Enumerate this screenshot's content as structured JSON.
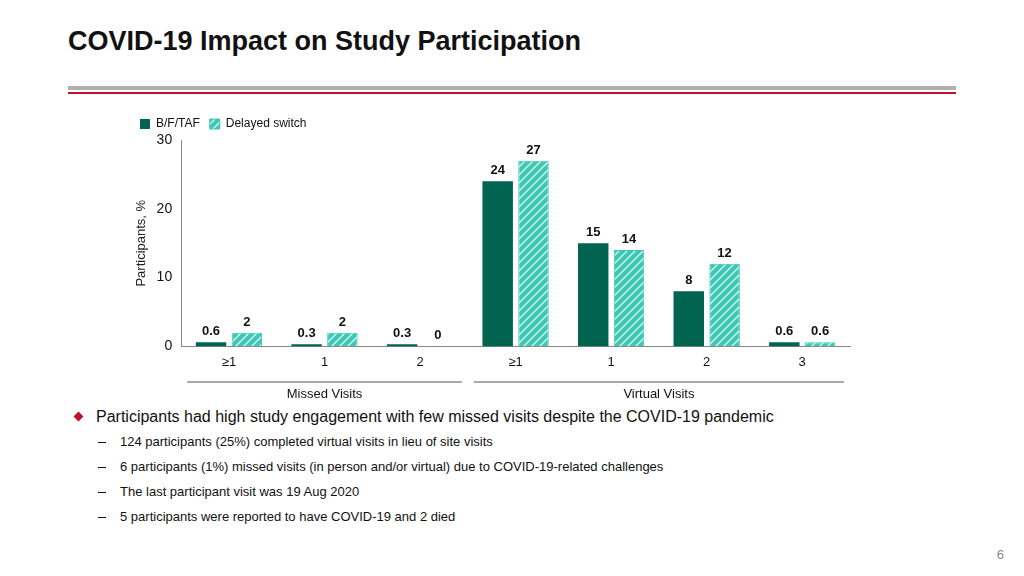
{
  "page": {
    "title": "COVID-19 Impact on Study Participation",
    "bullets": [
      {
        "text": "Participants had high study engagement with few missed visits despite the COVID-19 pandemic",
        "sub": [
          "124 participants (25%) completed virtual visits in lieu of site visits",
          "6 participants (1%) missed visits (in person and/or virtual) due to COVID-19-related challenges",
          "The last participant visit was 19 Aug 2020",
          "5 participants were reported to have COVID-19 and 2 died"
        ]
      }
    ],
    "page_number": 6
  },
  "chart_data": {
    "type": "bar",
    "y_label": "Participants, %",
    "categories": [
      "≥1",
      "1",
      "2",
      "≥1",
      "1",
      "2",
      "3"
    ],
    "category_groups": [
      "Missed Visits",
      "Missed Visits",
      "Missed Visits",
      "Virtual Visits",
      "Virtual Visits",
      "Virtual Visits",
      "Virtual Visits"
    ],
    "series": [
      {
        "name": "B/F/TAF",
        "color": "#006451",
        "values": [
          0.6,
          0.3,
          0.3,
          24,
          15,
          8,
          0.6
        ]
      },
      {
        "name": "Delayed switch",
        "color": "#3cc8b4",
        "values": [
          2,
          2,
          0,
          27,
          14,
          12,
          0.6
        ]
      }
    ],
    "ylim": [
      0,
      30
    ],
    "yticks": [
      0,
      10,
      20,
      30
    ],
    "grid": false,
    "legend": "top-left",
    "data_labels": true
  }
}
